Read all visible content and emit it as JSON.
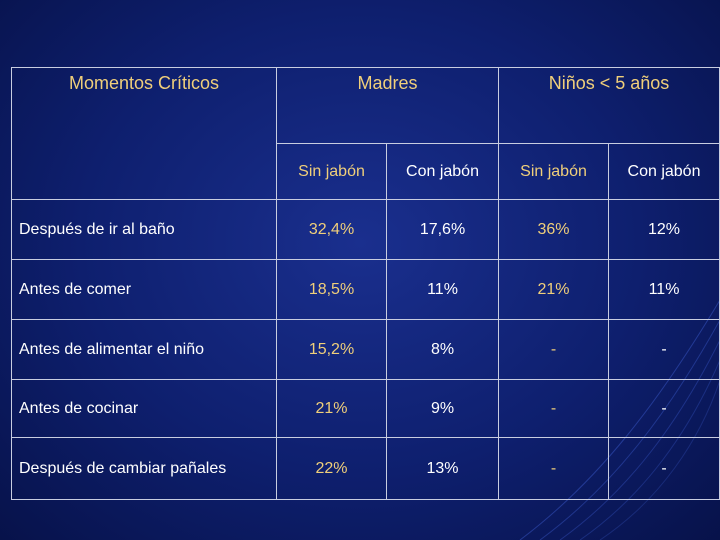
{
  "table": {
    "header": {
      "col1": "Momentos Críticos",
      "group1": "Madres",
      "group2": "Niños < 5 años"
    },
    "subheaders": [
      "Sin jabón",
      "Con jabón",
      "Sin jabón",
      "Con jabón"
    ],
    "rows": [
      {
        "label": "Después de ir al baño",
        "values": [
          "32,4%",
          "17,6%",
          "36%",
          "12%"
        ]
      },
      {
        "label": "Antes de comer",
        "values": [
          "18,5%",
          "11%",
          "21%",
          "11%"
        ]
      },
      {
        "label": "Antes de alimentar el niño",
        "values": [
          "15,2%",
          "8%",
          "-",
          "-"
        ]
      },
      {
        "label": "Antes de cocinar",
        "values": [
          "21%",
          "9%",
          "-",
          "-"
        ]
      },
      {
        "label": "Después de cambiar pañales",
        "values": [
          "22%",
          "13%",
          "-",
          "-"
        ]
      }
    ]
  },
  "colors": {
    "background": "#0e1f6e",
    "accent_yellow": "#f0cf7a",
    "text_white": "#ffffff",
    "border": "#c8cde0"
  }
}
